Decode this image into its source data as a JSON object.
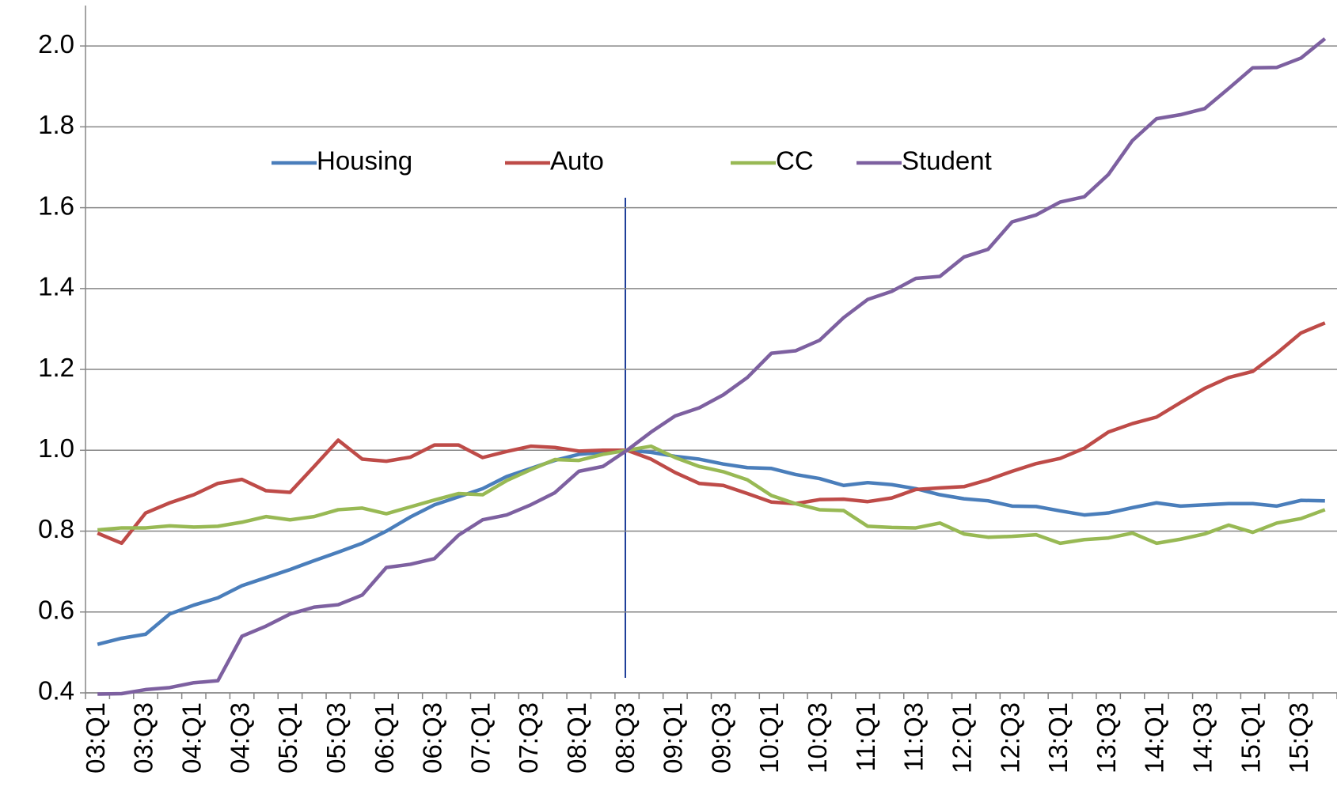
{
  "chart_data": {
    "type": "line",
    "categories": [
      "03:Q1",
      null,
      "03:Q3",
      null,
      "04:Q1",
      null,
      "04:Q3",
      null,
      "05:Q1",
      null,
      "05:Q3",
      null,
      "06:Q1",
      null,
      "06:Q3",
      null,
      "07:Q1",
      null,
      "07:Q3",
      null,
      "08:Q1",
      null,
      "08:Q3",
      null,
      "09:Q1",
      null,
      "09:Q3",
      null,
      "10:Q1",
      null,
      "10:Q3",
      null,
      "11:Q1",
      null,
      "11:Q3",
      null,
      "12:Q1",
      null,
      "12:Q3",
      null,
      "13:Q1",
      null,
      "13:Q3",
      null,
      "14:Q1",
      null,
      "14:Q3",
      null,
      "15:Q1",
      null,
      "15:Q3",
      null
    ],
    "series": [
      {
        "name": "Housing",
        "color": "#4a7ebb",
        "values": [
          0.52,
          0.535,
          0.545,
          0.595,
          0.617,
          0.635,
          0.665,
          0.685,
          0.705,
          0.727,
          0.748,
          0.77,
          0.8,
          0.835,
          0.865,
          0.885,
          0.905,
          0.935,
          0.955,
          0.975,
          0.99,
          0.995,
          1.0,
          0.995,
          0.985,
          0.978,
          0.966,
          0.957,
          0.955,
          0.94,
          0.93,
          0.913,
          0.92,
          0.915,
          0.905,
          0.89,
          0.88,
          0.875,
          0.862,
          0.861,
          0.85,
          0.84,
          0.845,
          0.858,
          0.87,
          0.862,
          0.865,
          0.868,
          0.868,
          0.862,
          0.876,
          0.875
        ]
      },
      {
        "name": "Auto",
        "color": "#be4b48",
        "values": [
          0.795,
          0.77,
          0.845,
          0.87,
          0.89,
          0.918,
          0.928,
          0.9,
          0.896,
          0.96,
          1.025,
          0.978,
          0.973,
          0.983,
          1.013,
          1.013,
          0.982,
          0.997,
          1.01,
          1.007,
          0.998,
          1.0,
          1.0,
          0.978,
          0.945,
          0.918,
          0.913,
          0.893,
          0.872,
          0.868,
          0.878,
          0.879,
          0.873,
          0.882,
          0.903,
          0.907,
          0.91,
          0.927,
          0.948,
          0.967,
          0.98,
          1.005,
          1.045,
          1.066,
          1.082,
          1.118,
          1.153,
          1.18,
          1.195,
          1.24,
          1.29,
          1.315
        ]
      },
      {
        "name": "CC",
        "color": "#98b954",
        "values": [
          0.803,
          0.808,
          0.808,
          0.813,
          0.81,
          0.812,
          0.822,
          0.836,
          0.828,
          0.836,
          0.853,
          0.857,
          0.843,
          0.86,
          0.877,
          0.893,
          0.89,
          0.925,
          0.952,
          0.977,
          0.975,
          0.99,
          1.0,
          1.01,
          0.982,
          0.96,
          0.947,
          0.927,
          0.888,
          0.868,
          0.853,
          0.851,
          0.812,
          0.809,
          0.808,
          0.82,
          0.793,
          0.785,
          0.787,
          0.791,
          0.77,
          0.779,
          0.783,
          0.795,
          0.77,
          0.78,
          0.793,
          0.815,
          0.797,
          0.82,
          0.831,
          0.853
        ]
      },
      {
        "name": "Student",
        "color": "#7d60a0",
        "values": [
          0.397,
          0.398,
          0.408,
          0.413,
          0.425,
          0.43,
          0.54,
          0.565,
          0.595,
          0.612,
          0.618,
          0.642,
          0.71,
          0.718,
          0.732,
          0.79,
          0.828,
          0.84,
          0.865,
          0.895,
          0.948,
          0.96,
          1.0,
          1.045,
          1.085,
          1.105,
          1.137,
          1.18,
          1.24,
          1.246,
          1.272,
          1.328,
          1.373,
          1.393,
          1.425,
          1.43,
          1.478,
          1.497,
          1.565,
          1.582,
          1.614,
          1.627,
          1.682,
          1.766,
          1.82,
          1.83,
          1.845,
          1.895,
          1.946,
          1.947,
          1.97,
          2.018
        ]
      }
    ],
    "ylim": [
      0.4,
      2.1
    ],
    "yticks": [
      0.4,
      0.6,
      0.8,
      {
        "value": 1.0,
        "label": "1.0"
      },
      1.2,
      1.4,
      1.6,
      1.8,
      {
        "value": 2.0,
        "label": "2.0"
      }
    ],
    "grid": true,
    "legend": "top"
  }
}
